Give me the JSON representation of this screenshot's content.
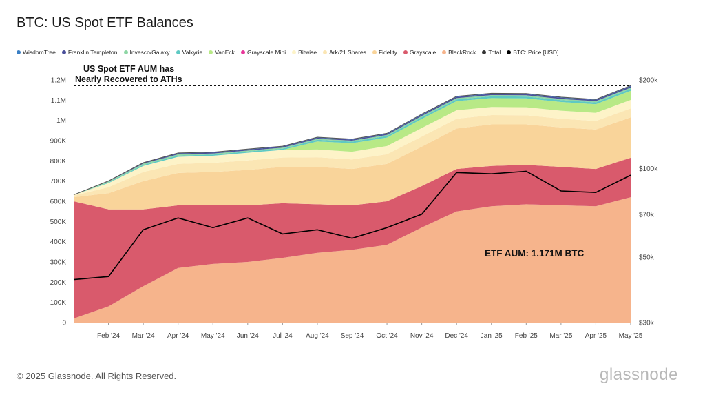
{
  "title": "BTC: US Spot ETF Balances",
  "footer": {
    "copyright": "© 2025 Glassnode. All Rights Reserved.",
    "logo": "glassnode"
  },
  "watermark": "glassnode",
  "chart_data": {
    "type": "area",
    "stacked": true,
    "title": "BTC: US Spot ETF Balances",
    "annotations": {
      "ath_note_line1": "US Spot ETF AUM has",
      "ath_note_line2": "Nearly Recovered to ATHs",
      "aum_label": "ETF AUM: 1.171M BTC",
      "ath_level": 1171000
    },
    "x_ticks": [
      "Feb '24",
      "Mar '24",
      "Apr '24",
      "May '24",
      "Jun '24",
      "Jul '24",
      "Aug '24",
      "Sep '24",
      "Oct '24",
      "Nov '24",
      "Dec '24",
      "Jan '25",
      "Feb '25",
      "Mar '25",
      "Apr '25",
      "May '25"
    ],
    "x": [
      "Jan '24",
      "Feb '24",
      "Mar '24",
      "Apr '24",
      "May '24",
      "Jun '24",
      "Jul '24",
      "Aug '24",
      "Sep '24",
      "Oct '24",
      "Nov '24",
      "Dec '24",
      "Jan '25",
      "Feb '25",
      "Mar '25",
      "Apr '25",
      "May '25"
    ],
    "y_left": {
      "ticks": [
        "0",
        "100K",
        "200K",
        "300K",
        "400K",
        "500K",
        "600K",
        "700K",
        "800K",
        "900K",
        "1M",
        "1.1M",
        "1.2M"
      ],
      "ylim": [
        0,
        1200000
      ]
    },
    "y_right": {
      "label": "BTC: Price [USD]",
      "scale": "log",
      "ticks": [
        "$30k",
        "$50k",
        "$70k",
        "$100k",
        "$200k"
      ],
      "tick_values": [
        30000,
        50000,
        70000,
        100000,
        200000
      ],
      "ylim": [
        30000,
        200000
      ]
    },
    "series": [
      {
        "name": "BlackRock",
        "color": "#f6b48c",
        "values": [
          20000,
          80000,
          180000,
          270000,
          290000,
          300000,
          320000,
          345000,
          360000,
          385000,
          470000,
          550000,
          575000,
          585000,
          580000,
          575000,
          620000
        ]
      },
      {
        "name": "Grayscale",
        "color": "#d95a6c",
        "values": [
          580000,
          480000,
          380000,
          310000,
          290000,
          280000,
          270000,
          240000,
          220000,
          215000,
          205000,
          210000,
          200000,
          195000,
          190000,
          185000,
          195000
        ]
      },
      {
        "name": "Fidelity",
        "color": "#f9d49a",
        "values": [
          20000,
          80000,
          140000,
          160000,
          165000,
          175000,
          180000,
          185000,
          180000,
          185000,
          195000,
          200000,
          205000,
          200000,
          195000,
          195000,
          200000
        ]
      },
      {
        "name": "Ark/21 Shares",
        "color": "#fbe6b4",
        "values": [
          8000,
          30000,
          45000,
          45000,
          45000,
          47000,
          46000,
          48000,
          47000,
          48000,
          50000,
          48000,
          46000,
          45000,
          43000,
          42000,
          44000
        ]
      },
      {
        "name": "Bitwise",
        "color": "#fdf3c8",
        "values": [
          3000,
          20000,
          30000,
          35000,
          35000,
          38000,
          38000,
          38000,
          38000,
          40000,
          42000,
          42000,
          40000,
          40000,
          40000,
          40000,
          42000
        ]
      },
      {
        "name": "Grayscale Mini",
        "color": "#e8379a",
        "values": [
          0,
          0,
          0,
          0,
          0,
          0,
          0,
          0,
          0,
          0,
          0,
          0,
          0,
          0,
          0,
          0,
          0
        ]
      },
      {
        "name": "VanEck",
        "color": "#b8e986",
        "values": [
          0,
          0,
          0,
          0,
          0,
          0,
          0,
          40000,
          42000,
          42000,
          45000,
          45000,
          44000,
          44000,
          43000,
          43000,
          45000
        ]
      },
      {
        "name": "Valkyrie",
        "color": "#5ec9c3",
        "values": [
          0,
          3000,
          5000,
          6000,
          6000,
          6000,
          6000,
          8000,
          8000,
          8000,
          9000,
          9000,
          9000,
          9000,
          9000,
          9000,
          10000
        ]
      },
      {
        "name": "Invesco/Galaxy",
        "color": "#8ed6a5",
        "values": [
          1000,
          5000,
          6000,
          6000,
          5000,
          5000,
          5000,
          5000,
          5000,
          5000,
          6000,
          6000,
          6000,
          6000,
          6000,
          6000,
          6000
        ]
      },
      {
        "name": "Franklin Templeton",
        "color": "#4a4f9a",
        "values": [
          0,
          2000,
          4000,
          5000,
          5000,
          5000,
          5000,
          5000,
          5000,
          5000,
          6000,
          6000,
          6000,
          6000,
          6000,
          6000,
          7000
        ]
      },
      {
        "name": "WisdomTree",
        "color": "#3a7fc4",
        "values": [
          0,
          500,
          1000,
          2000,
          2000,
          2500,
          2500,
          3000,
          3000,
          3000,
          3000,
          3000,
          3000,
          3000,
          3000,
          3000,
          3000
        ]
      }
    ],
    "price": {
      "name": "BTC: Price [USD]",
      "color": "#000000",
      "values": [
        42000,
        43000,
        62000,
        68000,
        63000,
        68000,
        60000,
        62000,
        58000,
        63000,
        70000,
        97000,
        96000,
        98000,
        84000,
        83000,
        95000
      ]
    },
    "legend": [
      {
        "name": "WisdomTree",
        "color": "#3a7fc4"
      },
      {
        "name": "Franklin Templeton",
        "color": "#4a4f9a"
      },
      {
        "name": "Invesco/Galaxy",
        "color": "#8ed6a5"
      },
      {
        "name": "Valkyrie",
        "color": "#5ec9c3"
      },
      {
        "name": "VanEck",
        "color": "#b8e986"
      },
      {
        "name": "Grayscale Mini",
        "color": "#e8379a"
      },
      {
        "name": "Bitwise",
        "color": "#fdf3c8"
      },
      {
        "name": "Ark/21 Shares",
        "color": "#fbe6b4"
      },
      {
        "name": "Fidelity",
        "color": "#f9d49a"
      },
      {
        "name": "Grayscale",
        "color": "#d95a6c"
      },
      {
        "name": "BlackRock",
        "color": "#f6b48c"
      },
      {
        "name": "Total",
        "color": "#333333"
      },
      {
        "name": "BTC: Price [USD]",
        "color": "#000000"
      }
    ],
    "legend_position": "top-left",
    "grid": false
  }
}
